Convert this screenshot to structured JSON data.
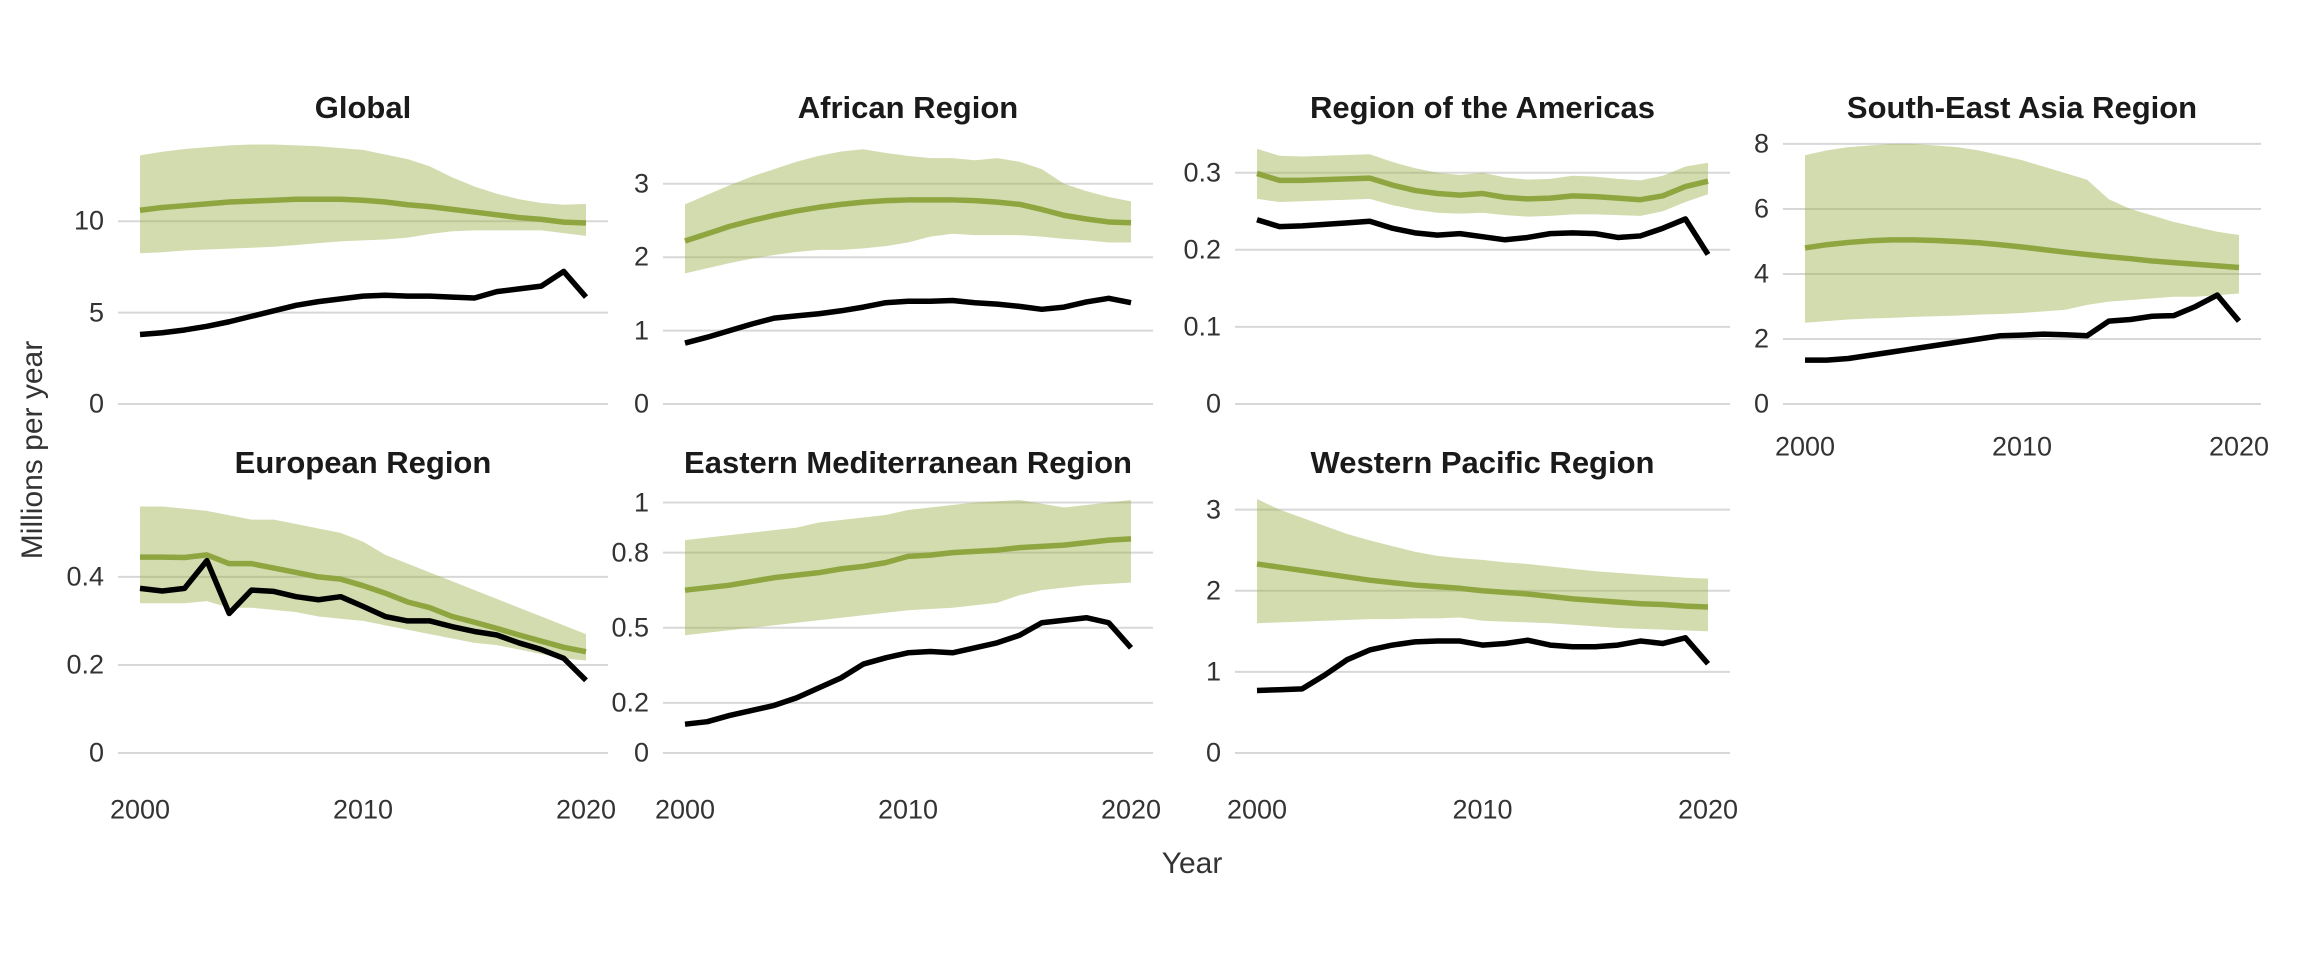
{
  "axis_titles": {
    "x": "Year",
    "y": "Millions per year"
  },
  "chart_data": {
    "type": "line",
    "xlabel": "Year",
    "ylabel": "Millions per year",
    "grid": "horizontal-only",
    "legend": "none",
    "x": [
      2000,
      2001,
      2002,
      2003,
      2004,
      2005,
      2006,
      2007,
      2008,
      2009,
      2010,
      2011,
      2012,
      2013,
      2014,
      2015,
      2016,
      2017,
      2018,
      2019,
      2020
    ],
    "colors": {
      "estimate_line": "#8FA640",
      "uncertainty_band": "#9EB24D",
      "band_opacity": 0.45,
      "observed_line": "#000000",
      "gridline": "#D8D8D8",
      "title_text": "#1A1A1A",
      "tick_text": "#333333"
    },
    "facets": [
      {
        "title": "Global",
        "ylim": [
          0,
          15.1
        ],
        "yticks": [
          0,
          5,
          10
        ],
        "xticks": [],
        "series": {
          "estimate": [
            10.6,
            10.75,
            10.85,
            10.95,
            11.05,
            11.1,
            11.15,
            11.2,
            11.2,
            11.2,
            11.15,
            11.05,
            10.9,
            10.8,
            10.65,
            10.5,
            10.35,
            10.2,
            10.1,
            9.95,
            9.9
          ],
          "lower": [
            8.25,
            8.3,
            8.4,
            8.45,
            8.5,
            8.55,
            8.6,
            8.7,
            8.8,
            8.9,
            8.95,
            9.0,
            9.1,
            9.3,
            9.45,
            9.5,
            9.5,
            9.5,
            9.5,
            9.35,
            9.2
          ],
          "upper": [
            13.6,
            13.8,
            13.95,
            14.05,
            14.15,
            14.2,
            14.2,
            14.15,
            14.1,
            14.0,
            13.9,
            13.65,
            13.4,
            13.0,
            12.4,
            11.9,
            11.5,
            11.2,
            11.0,
            10.9,
            10.95
          ],
          "observed": [
            3.8,
            3.9,
            4.05,
            4.25,
            4.5,
            4.8,
            5.1,
            5.4,
            5.6,
            5.75,
            5.9,
            5.95,
            5.9,
            5.9,
            5.85,
            5.8,
            6.15,
            6.3,
            6.45,
            7.25,
            5.85
          ]
        }
      },
      {
        "title": "African Region",
        "ylim": [
          0,
          3.76
        ],
        "yticks": [
          0,
          1,
          2,
          3
        ],
        "xticks": [],
        "series": {
          "estimate": [
            2.22,
            2.32,
            2.42,
            2.5,
            2.57,
            2.63,
            2.68,
            2.72,
            2.75,
            2.77,
            2.78,
            2.78,
            2.78,
            2.77,
            2.75,
            2.72,
            2.65,
            2.57,
            2.52,
            2.48,
            2.47
          ],
          "lower": [
            1.78,
            1.85,
            1.92,
            1.98,
            2.03,
            2.07,
            2.1,
            2.1,
            2.12,
            2.15,
            2.2,
            2.28,
            2.32,
            2.3,
            2.3,
            2.3,
            2.28,
            2.25,
            2.23,
            2.2,
            2.2
          ],
          "upper": [
            2.72,
            2.85,
            2.98,
            3.1,
            3.2,
            3.3,
            3.38,
            3.44,
            3.47,
            3.42,
            3.38,
            3.35,
            3.35,
            3.32,
            3.35,
            3.3,
            3.2,
            3.0,
            2.9,
            2.82,
            2.76
          ],
          "observed": [
            0.83,
            0.91,
            1.0,
            1.09,
            1.17,
            1.2,
            1.23,
            1.27,
            1.32,
            1.38,
            1.4,
            1.4,
            1.41,
            1.38,
            1.36,
            1.33,
            1.29,
            1.32,
            1.39,
            1.44,
            1.38
          ]
        }
      },
      {
        "title": "Region of the Americas",
        "ylim": [
          0,
          0.358
        ],
        "yticks": [
          0,
          0.1,
          0.2,
          0.3
        ],
        "xticks": [],
        "series": {
          "estimate": [
            0.299,
            0.29,
            0.29,
            0.291,
            0.292,
            0.293,
            0.284,
            0.277,
            0.273,
            0.271,
            0.273,
            0.268,
            0.266,
            0.267,
            0.27,
            0.269,
            0.267,
            0.265,
            0.27,
            0.282,
            0.289
          ],
          "lower": [
            0.266,
            0.262,
            0.263,
            0.264,
            0.265,
            0.266,
            0.258,
            0.252,
            0.248,
            0.247,
            0.248,
            0.245,
            0.243,
            0.244,
            0.246,
            0.246,
            0.245,
            0.244,
            0.25,
            0.262,
            0.272
          ],
          "upper": [
            0.331,
            0.322,
            0.321,
            0.322,
            0.323,
            0.324,
            0.314,
            0.306,
            0.3,
            0.297,
            0.3,
            0.294,
            0.291,
            0.292,
            0.296,
            0.295,
            0.292,
            0.29,
            0.296,
            0.308,
            0.313
          ],
          "observed": [
            0.239,
            0.23,
            0.231,
            0.233,
            0.235,
            0.237,
            0.228,
            0.222,
            0.219,
            0.221,
            0.217,
            0.213,
            0.216,
            0.221,
            0.222,
            0.221,
            0.216,
            0.218,
            0.228,
            0.24,
            0.194
          ]
        }
      },
      {
        "title": "South-East Asia Region",
        "ylim": [
          0,
          8.49
        ],
        "yticks": [
          0,
          2,
          4,
          6,
          8
        ],
        "xticks": [
          "2000",
          "2010",
          "2020"
        ],
        "series": {
          "estimate": [
            4.8,
            4.9,
            4.97,
            5.02,
            5.05,
            5.05,
            5.03,
            5.0,
            4.96,
            4.9,
            4.83,
            4.75,
            4.67,
            4.6,
            4.53,
            4.47,
            4.4,
            4.35,
            4.3,
            4.25,
            4.2
          ],
          "lower": [
            2.5,
            2.55,
            2.6,
            2.63,
            2.65,
            2.68,
            2.7,
            2.72,
            2.75,
            2.77,
            2.8,
            2.85,
            2.9,
            3.05,
            3.15,
            3.2,
            3.25,
            3.3,
            3.3,
            3.35,
            3.4
          ],
          "upper": [
            7.65,
            7.8,
            7.9,
            7.95,
            8.0,
            8.0,
            7.95,
            7.9,
            7.8,
            7.65,
            7.5,
            7.3,
            7.1,
            6.9,
            6.3,
            6.0,
            5.8,
            5.6,
            5.45,
            5.3,
            5.2
          ],
          "observed": [
            1.35,
            1.35,
            1.4,
            1.5,
            1.6,
            1.7,
            1.8,
            1.9,
            2.0,
            2.1,
            2.12,
            2.15,
            2.13,
            2.1,
            2.55,
            2.6,
            2.7,
            2.72,
            3.0,
            3.35,
            2.55
          ]
        }
      },
      {
        "title": "European Region",
        "ylim": [
          0,
          0.586
        ],
        "yticks": [
          0,
          0.2,
          0.4
        ],
        "xticks": [
          "2000",
          "2010",
          "2020"
        ],
        "series": {
          "estimate": [
            0.445,
            0.445,
            0.444,
            0.45,
            0.43,
            0.43,
            0.42,
            0.41,
            0.4,
            0.395,
            0.38,
            0.363,
            0.343,
            0.33,
            0.31,
            0.297,
            0.283,
            0.268,
            0.254,
            0.24,
            0.23
          ],
          "lower": [
            0.34,
            0.34,
            0.34,
            0.345,
            0.33,
            0.33,
            0.325,
            0.32,
            0.31,
            0.305,
            0.3,
            0.29,
            0.28,
            0.27,
            0.26,
            0.25,
            0.245,
            0.235,
            0.225,
            0.215,
            0.21
          ],
          "upper": [
            0.56,
            0.56,
            0.555,
            0.55,
            0.54,
            0.53,
            0.53,
            0.52,
            0.51,
            0.5,
            0.48,
            0.45,
            0.43,
            0.41,
            0.39,
            0.37,
            0.35,
            0.33,
            0.31,
            0.29,
            0.27
          ],
          "observed": [
            0.374,
            0.368,
            0.374,
            0.437,
            0.317,
            0.37,
            0.367,
            0.355,
            0.348,
            0.355,
            0.333,
            0.31,
            0.3,
            0.3,
            0.287,
            0.276,
            0.268,
            0.25,
            0.235,
            0.215,
            0.165
          ]
        }
      },
      {
        "title": "Eastern Mediterranean Region",
        "ylim": [
          0,
          1.03
        ],
        "yticks": [
          0,
          0.2,
          0.5,
          0.8,
          1
        ],
        "xticks": [
          "2000",
          "2010",
          "2020"
        ],
        "series": {
          "estimate": [
            0.65,
            0.66,
            0.67,
            0.685,
            0.7,
            0.71,
            0.72,
            0.735,
            0.745,
            0.76,
            0.785,
            0.79,
            0.8,
            0.805,
            0.81,
            0.82,
            0.825,
            0.83,
            0.84,
            0.85,
            0.855
          ],
          "lower": [
            0.47,
            0.48,
            0.49,
            0.5,
            0.51,
            0.52,
            0.53,
            0.54,
            0.55,
            0.56,
            0.57,
            0.575,
            0.58,
            0.59,
            0.6,
            0.63,
            0.65,
            0.66,
            0.67,
            0.675,
            0.68
          ],
          "upper": [
            0.85,
            0.86,
            0.87,
            0.88,
            0.89,
            0.9,
            0.92,
            0.93,
            0.94,
            0.95,
            0.97,
            0.98,
            0.99,
            1.0,
            1.005,
            1.01,
            0.995,
            0.98,
            0.99,
            1.0,
            1.01
          ],
          "observed": [
            0.115,
            0.125,
            0.15,
            0.17,
            0.19,
            0.22,
            0.26,
            0.3,
            0.355,
            0.38,
            0.4,
            0.405,
            0.4,
            0.42,
            0.44,
            0.47,
            0.52,
            0.53,
            0.54,
            0.52,
            0.42
          ]
        }
      },
      {
        "title": "Western Pacific Region",
        "ylim": [
          0,
          3.18
        ],
        "yticks": [
          0,
          1,
          2,
          3
        ],
        "xticks": [
          "2000",
          "2010",
          "2020"
        ],
        "series": {
          "estimate": [
            2.33,
            2.29,
            2.25,
            2.21,
            2.17,
            2.13,
            2.1,
            2.07,
            2.05,
            2.03,
            2.0,
            1.98,
            1.96,
            1.93,
            1.9,
            1.88,
            1.86,
            1.84,
            1.83,
            1.81,
            1.8
          ],
          "lower": [
            1.6,
            1.61,
            1.62,
            1.63,
            1.64,
            1.65,
            1.65,
            1.66,
            1.66,
            1.67,
            1.63,
            1.62,
            1.61,
            1.6,
            1.58,
            1.56,
            1.54,
            1.53,
            1.52,
            1.51,
            1.5
          ],
          "upper": [
            3.13,
            3.0,
            2.9,
            2.8,
            2.7,
            2.62,
            2.55,
            2.48,
            2.43,
            2.4,
            2.38,
            2.35,
            2.33,
            2.3,
            2.27,
            2.24,
            2.22,
            2.2,
            2.18,
            2.16,
            2.15
          ],
          "observed": [
            0.77,
            0.78,
            0.79,
            0.96,
            1.15,
            1.27,
            1.33,
            1.37,
            1.38,
            1.38,
            1.33,
            1.35,
            1.39,
            1.33,
            1.31,
            1.31,
            1.33,
            1.38,
            1.35,
            1.42,
            1.1
          ]
        }
      }
    ]
  }
}
